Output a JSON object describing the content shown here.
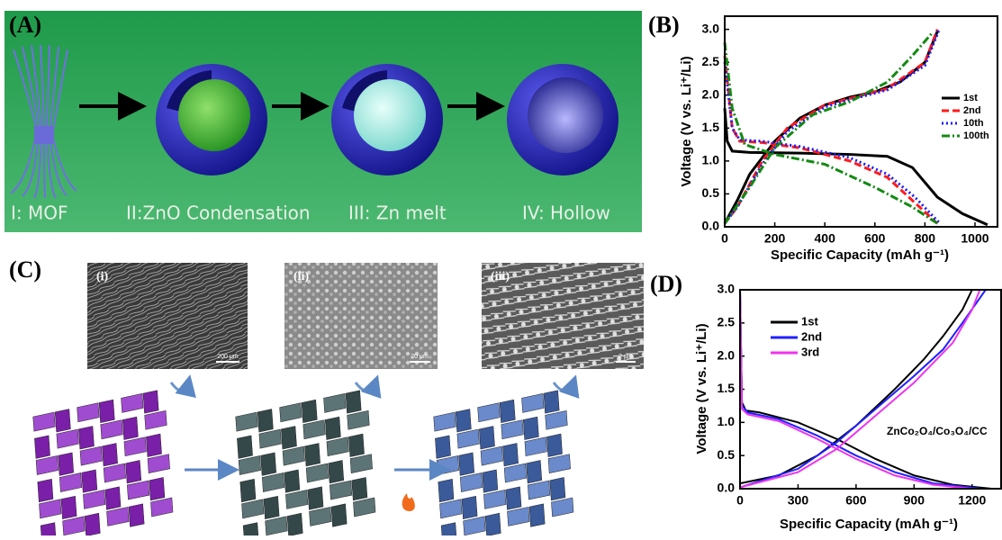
{
  "panel_a": {
    "label": "(A)",
    "steps": [
      "I: MOF",
      "II:ZnO Condensation",
      "III: Zn melt",
      "IV: Hollow"
    ]
  },
  "panel_c": {
    "label": "(C)",
    "images": [
      {
        "label": "(i)",
        "scale": "200 μm"
      },
      {
        "label": "(ii)",
        "scale": "20 μm"
      },
      {
        "label": "(iii)",
        "scale": "2 μm"
      }
    ]
  },
  "chart_data": [
    {
      "type": "line",
      "title": "(B)",
      "x_label": "Specific Capacity (mAh g⁻¹)",
      "y_label": "Voltage (V vs. Li⁺/Li)",
      "xlim": [
        0,
        1090
      ],
      "xticks": [
        0,
        200,
        400,
        600,
        800,
        1000
      ],
      "ylim": [
        0,
        3.2
      ],
      "yticks": [
        {
          "value": 0,
          "label": "0.0"
        },
        0.5,
        {
          "value": 1,
          "label": "1.0"
        },
        1.5,
        {
          "value": 2,
          "label": "2.0"
        },
        2.5,
        {
          "value": 3,
          "label": "3.0"
        }
      ],
      "legend": "center right",
      "series": [
        {
          "name": "1st",
          "color": "#000000",
          "style": "solid",
          "x": [
            0,
            10,
            30,
            100,
            300,
            500,
            650,
            750,
            850,
            950,
            1050,
            null,
            0,
            50,
            100,
            200,
            300,
            400,
            500,
            600,
            700,
            800,
            850
          ],
          "values": [
            1.8,
            1.3,
            1.15,
            1.13,
            1.12,
            1.1,
            1.07,
            0.9,
            0.45,
            0.2,
            0.03,
            null,
            0.05,
            0.4,
            0.8,
            1.3,
            1.65,
            1.85,
            1.97,
            2.05,
            2.2,
            2.5,
            2.97
          ]
        },
        {
          "name": "2nd",
          "color": "#ff1a1a",
          "style": "dashed",
          "x": [
            0,
            30,
            60,
            150,
            300,
            500,
            650,
            750,
            850,
            null,
            0,
            50,
            150,
            250,
            400,
            500,
            650,
            800,
            850
          ],
          "values": [
            2.6,
            1.5,
            1.3,
            1.28,
            1.2,
            1.0,
            0.75,
            0.4,
            0.05,
            null,
            0.05,
            0.3,
            1.0,
            1.5,
            1.85,
            1.95,
            2.1,
            2.5,
            3.0
          ]
        },
        {
          "name": "10th",
          "color": "#1a1aff",
          "style": "dotted",
          "x": [
            0,
            30,
            60,
            150,
            300,
            500,
            650,
            760,
            860,
            null,
            0,
            50,
            150,
            250,
            400,
            500,
            650,
            800,
            855
          ],
          "values": [
            2.5,
            1.5,
            1.32,
            1.3,
            1.22,
            1.05,
            0.8,
            0.45,
            0.05,
            null,
            0.05,
            0.3,
            0.95,
            1.45,
            1.82,
            1.93,
            2.08,
            2.45,
            2.98
          ]
        },
        {
          "name": "100th",
          "color": "#128a12",
          "style": "dashdot",
          "x": [
            0,
            30,
            80,
            200,
            400,
            600,
            750,
            850,
            null,
            0,
            100,
            200,
            350,
            500,
            650,
            750,
            830
          ],
          "values": [
            2.8,
            1.8,
            1.25,
            1.1,
            0.95,
            0.6,
            0.3,
            0.05,
            null,
            0.05,
            0.6,
            1.2,
            1.7,
            1.9,
            2.2,
            2.6,
            2.95
          ]
        }
      ]
    },
    {
      "type": "line",
      "title": "(D)",
      "x_label": "Specific Capacity (mAh g⁻¹)",
      "y_label": "Voltage (V vs. Li⁺/Li)",
      "annotation": "ZnCo₂O₄/Co₃O₄/CC",
      "xlim": [
        0,
        1350
      ],
      "xticks": [
        0,
        300,
        600,
        900,
        1200
      ],
      "ylim": [
        0,
        3
      ],
      "yticks": [
        {
          "value": 0,
          "label": "0.0"
        },
        0.5,
        {
          "value": 1,
          "label": "1.0"
        },
        1.5,
        {
          "value": 2,
          "label": "2.0"
        },
        2.5,
        {
          "value": 3,
          "label": "3.0"
        }
      ],
      "legend": "upper left",
      "series": [
        {
          "name": "1st",
          "color": "#000000",
          "style": "solid",
          "x": [
            0,
            10,
            30,
            100,
            300,
            500,
            700,
            900,
            1100,
            1300,
            null,
            0,
            200,
            400,
            600,
            800,
            950,
            1050,
            1150,
            1200
          ],
          "values": [
            3.0,
            1.3,
            1.18,
            1.15,
            1.0,
            0.75,
            0.45,
            0.2,
            0.06,
            0.0,
            null,
            0.08,
            0.2,
            0.5,
            0.95,
            1.5,
            1.95,
            2.3,
            2.7,
            3.0
          ]
        },
        {
          "name": "2nd",
          "color": "#2020ff",
          "style": "solid",
          "x": [
            0,
            10,
            40,
            200,
            400,
            600,
            800,
            1000,
            1250,
            null,
            0,
            300,
            500,
            700,
            900,
            1050,
            1150,
            1270
          ],
          "values": [
            3.0,
            1.25,
            1.15,
            1.05,
            0.8,
            0.5,
            0.25,
            0.08,
            0.0,
            null,
            0.02,
            0.3,
            0.7,
            1.2,
            1.7,
            2.1,
            2.5,
            3.0
          ]
        },
        {
          "name": "3rd",
          "color": "#ee33ee",
          "style": "solid",
          "x": [
            0,
            10,
            40,
            200,
            400,
            600,
            800,
            1000,
            1200,
            null,
            0,
            300,
            500,
            700,
            900,
            1000,
            1100,
            1200,
            1240
          ],
          "values": [
            3.0,
            1.2,
            1.12,
            1.02,
            0.75,
            0.45,
            0.2,
            0.06,
            0.0,
            null,
            0.02,
            0.25,
            0.6,
            1.1,
            1.6,
            1.9,
            2.2,
            2.7,
            3.0
          ]
        }
      ]
    }
  ]
}
